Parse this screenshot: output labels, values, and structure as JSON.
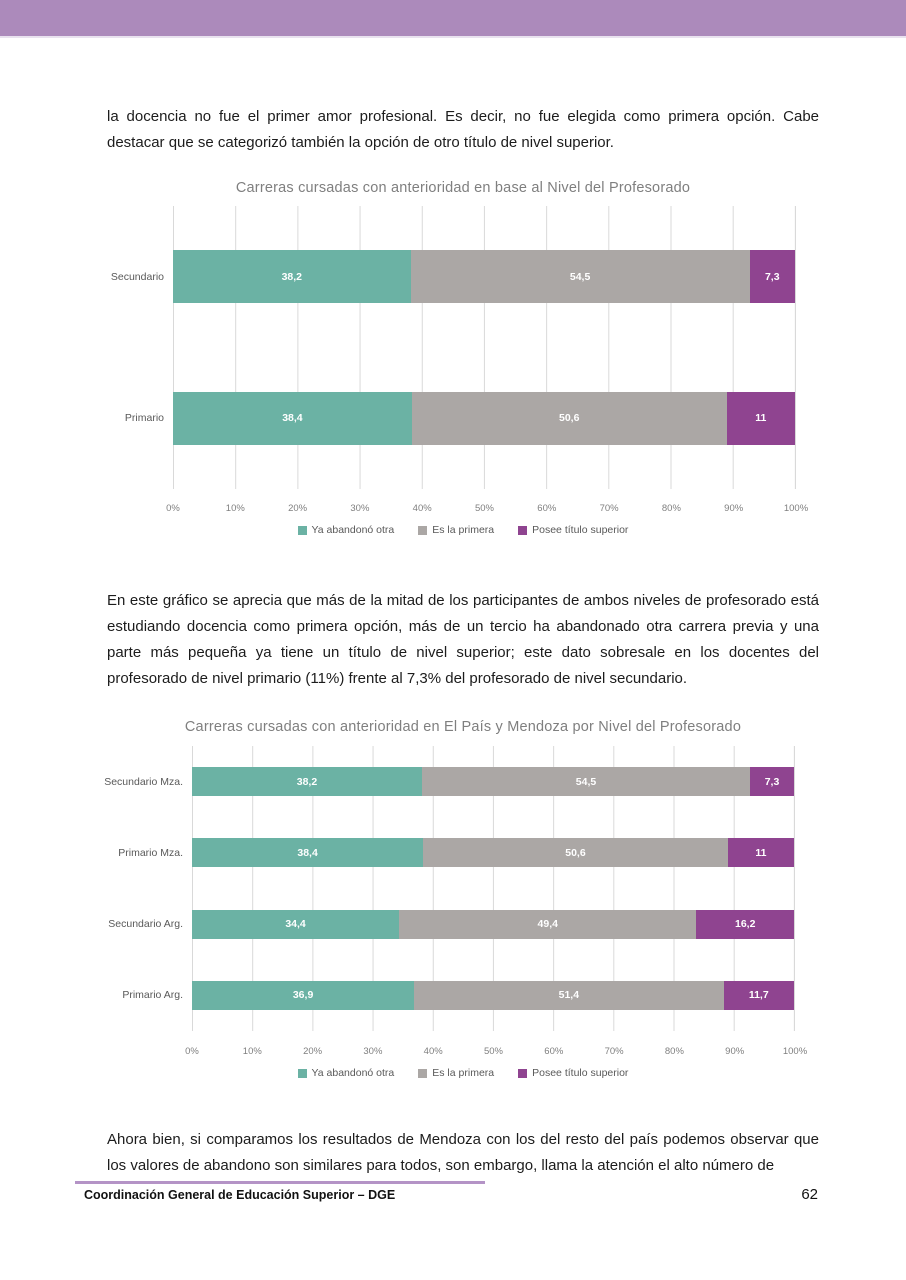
{
  "header": {
    "band_color": "#ac8abb"
  },
  "paragraphs": {
    "p1": "la docencia no fue el primer amor profesional. Es decir, no fue elegida como primera opción. Cabe destacar que se categorizó también la opción de otro título de nivel superior.",
    "p2": "En este gráfico se aprecia que más de la mitad de los participantes de ambos niveles de profesorado está estudiando docencia como primera opción, más de un tercio ha abandonado otra carrera previa y una parte más pequeña ya tiene un título de nivel superior; este dato sobresale en los docentes del profesorado de nivel primario (11%) frente al 7,3% del profesorado de nivel secundario.",
    "p3": "Ahora bien, si comparamos los resultados de Mendoza con los del resto del país podemos observar que los valores de abandono son similares para todos, son embargo, llama la atención el alto número de"
  },
  "chart_data": [
    {
      "type": "bar",
      "subtype": "horizontal-stacked",
      "title": "Carreras cursadas con anterioridad en base al Nivel del Profesorado",
      "categories": [
        "Secundario",
        "Primario"
      ],
      "series": [
        {
          "name": "Ya abandonó otra",
          "color": "#6bb2a4",
          "values": [
            38.2,
            38.4
          ],
          "labels": [
            "38,2",
            "38,4"
          ]
        },
        {
          "name": "Es la primera",
          "color": "#aba7a5",
          "values": [
            54.5,
            50.6
          ],
          "labels": [
            "54,5",
            "50,6"
          ]
        },
        {
          "name": "Posee título superior",
          "color": "#8f4490",
          "values": [
            7.3,
            11.0
          ],
          "labels": [
            "7,3",
            "11"
          ]
        }
      ],
      "xlim": [
        0,
        100
      ],
      "x_ticks": [
        "0%",
        "10%",
        "20%",
        "30%",
        "40%",
        "50%",
        "60%",
        "70%",
        "80%",
        "90%",
        "100%"
      ],
      "grid": "vertical",
      "legend_position": "bottom"
    },
    {
      "type": "bar",
      "subtype": "horizontal-stacked",
      "title": "Carreras cursadas con anterioridad en El País y Mendoza por Nivel del Profesorado",
      "categories": [
        "Secundario Mza.",
        "Primario Mza.",
        "Secundario Arg.",
        "Primario Arg."
      ],
      "series": [
        {
          "name": "Ya abandonó otra",
          "color": "#6bb2a4",
          "values": [
            38.2,
            38.4,
            34.4,
            36.9
          ],
          "labels": [
            "38,2",
            "38,4",
            "34,4",
            "36,9"
          ]
        },
        {
          "name": "Es la primera",
          "color": "#aba7a5",
          "values": [
            54.5,
            50.6,
            49.4,
            51.4
          ],
          "labels": [
            "54,5",
            "50,6",
            "49,4",
            "51,4"
          ]
        },
        {
          "name": "Posee título superior",
          "color": "#8f4490",
          "values": [
            7.3,
            11.0,
            16.2,
            11.7
          ],
          "labels": [
            "7,3",
            "11",
            "16,2",
            "11,7"
          ]
        }
      ],
      "xlim": [
        0,
        100
      ],
      "x_ticks": [
        "0%",
        "10%",
        "20%",
        "30%",
        "40%",
        "50%",
        "60%",
        "70%",
        "80%",
        "90%",
        "100%"
      ],
      "grid": "vertical",
      "legend_position": "bottom"
    }
  ],
  "footer": {
    "text": "Coordinación General de Educación Superior – DGE",
    "page_number": "62"
  }
}
